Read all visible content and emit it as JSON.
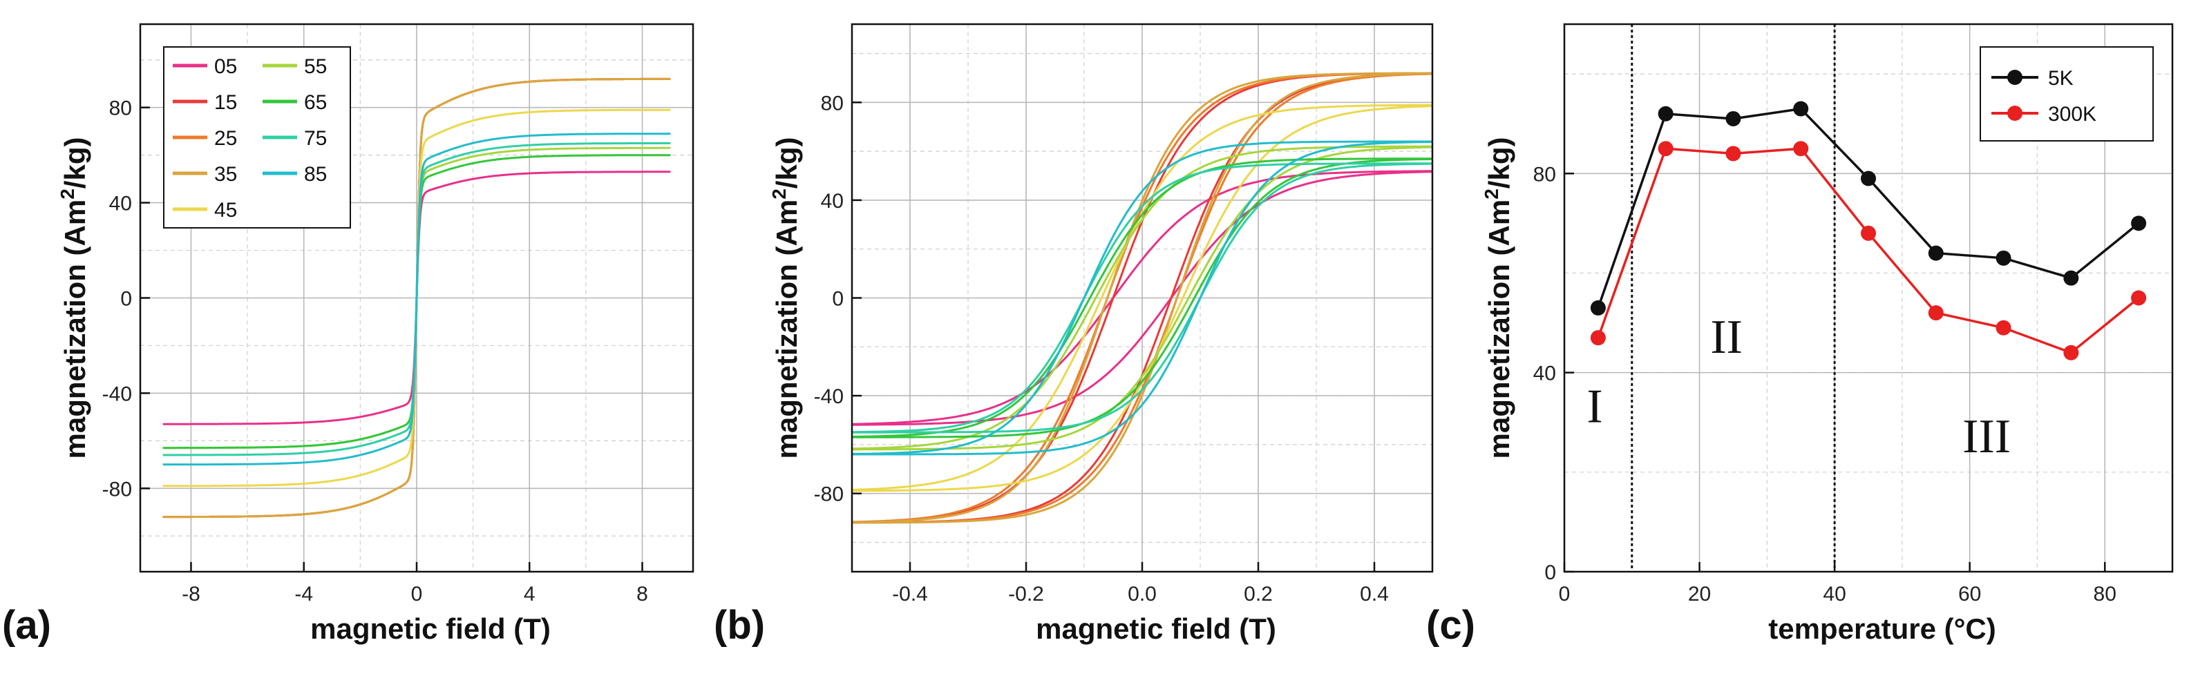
{
  "chart_data": [
    {
      "type": "line",
      "panel_label": "(a)",
      "xlabel": "magnetic field (T)",
      "ylabel_main": "magnetization (Am",
      "ylabel_sup": "2",
      "ylabel_end": "/kg)",
      "xlim": [
        -9.8,
        9.8
      ],
      "ylim": [
        -115,
        115
      ],
      "xticks": [
        -8,
        -4,
        0,
        4,
        8
      ],
      "xtick_labels": [
        "-8",
        "-4",
        "0",
        "4",
        "8"
      ],
      "yticks": [
        -80,
        -40,
        0,
        40,
        80
      ],
      "ytick_labels": [
        "-80",
        "-40",
        "0",
        "40",
        "80"
      ],
      "grid": true,
      "legend": "top-left",
      "series": [
        {
          "name": "05",
          "color": "#e8308a",
          "ms": 53,
          "ms_neg": -53
        },
        {
          "name": "15",
          "color": "#e83a3a",
          "ms": 92,
          "ms_neg": -92
        },
        {
          "name": "25",
          "color": "#ef7a2a",
          "ms": 92,
          "ms_neg": -92
        },
        {
          "name": "35",
          "color": "#d9a53e",
          "ms": 92,
          "ms_neg": -92
        },
        {
          "name": "45",
          "color": "#ecd84c",
          "ms": 79,
          "ms_neg": -79
        },
        {
          "name": "55",
          "color": "#a6d63c",
          "ms": 63,
          "ms_neg": -63
        },
        {
          "name": "65",
          "color": "#34c63c",
          "ms": 60,
          "ms_neg": -63
        },
        {
          "name": "75",
          "color": "#2fcfa5",
          "ms": 65,
          "ms_neg": -66
        },
        {
          "name": "85",
          "color": "#22bccc",
          "ms": 69,
          "ms_neg": -70
        }
      ]
    },
    {
      "type": "line",
      "panel_label": "(b)",
      "xlabel": "magnetic field (T)",
      "ylabel_main": "magnetization (Am",
      "ylabel_sup": "2",
      "ylabel_end": "/kg)",
      "xlim": [
        -0.5,
        0.5
      ],
      "ylim": [
        -112,
        112
      ],
      "xticks": [
        -0.4,
        -0.2,
        0.0,
        0.2,
        0.4
      ],
      "xtick_labels": [
        "-0.4",
        "-0.2",
        "0.0",
        "0.2",
        "0.4"
      ],
      "yticks": [
        -80,
        -40,
        0,
        40,
        80
      ],
      "ytick_labels": [
        "-80",
        "-40",
        "0",
        "40",
        "80"
      ],
      "grid": true,
      "series": [
        {
          "name": "05",
          "color": "#e8308a",
          "ms": 52,
          "hc": 0.05,
          "w": 0.16
        },
        {
          "name": "15",
          "color": "#e83a3a",
          "ms": 92,
          "hc": 0.05,
          "w": 0.14
        },
        {
          "name": "25",
          "color": "#ef7a2a",
          "ms": 92,
          "hc": 0.06,
          "w": 0.14
        },
        {
          "name": "35",
          "color": "#d9a53e",
          "ms": 92,
          "hc": 0.06,
          "w": 0.13
        },
        {
          "name": "45",
          "color": "#ecd84c",
          "ms": 79,
          "hc": 0.07,
          "w": 0.15
        },
        {
          "name": "55",
          "color": "#a6d63c",
          "ms": 62,
          "hc": 0.08,
          "w": 0.14
        },
        {
          "name": "65",
          "color": "#34c63c",
          "ms": 57,
          "hc": 0.09,
          "w": 0.13
        },
        {
          "name": "75",
          "color": "#2fcfa5",
          "ms": 55,
          "hc": 0.1,
          "w": 0.12
        },
        {
          "name": "85",
          "color": "#22bccc",
          "ms": 64,
          "hc": 0.1,
          "w": 0.12
        }
      ]
    },
    {
      "type": "line",
      "panel_label": "(c)",
      "xlabel": "temperature (°C)",
      "ylabel_main": "magnetization (Am",
      "ylabel_sup": "2",
      "ylabel_end": "/kg)",
      "xlim": [
        0,
        90
      ],
      "ylim": [
        0,
        110
      ],
      "xticks": [
        0,
        20,
        40,
        60,
        80
      ],
      "xtick_labels": [
        "0",
        "20",
        "40",
        "60",
        "80"
      ],
      "yticks": [
        0,
        40,
        80
      ],
      "ytick_labels": [
        "0",
        "40",
        "80"
      ],
      "grid": true,
      "legend": "top-right",
      "x": [
        5,
        15,
        25,
        35,
        45,
        55,
        65,
        75,
        85
      ],
      "series": [
        {
          "name": "5K",
          "color": "#111111",
          "values": [
            53,
            92,
            91,
            93,
            79,
            64,
            63,
            59,
            70
          ]
        },
        {
          "name": "300K",
          "color": "#e82020",
          "values": [
            47,
            85,
            84,
            85,
            68,
            52,
            49,
            44,
            55
          ]
        }
      ],
      "vlines": [
        10,
        40
      ],
      "regions": [
        {
          "label": "I",
          "x": 4.5,
          "y": 30
        },
        {
          "label": "II",
          "x": 24,
          "y": 44
        },
        {
          "label": "III",
          "x": 62.5,
          "y": 24
        }
      ]
    }
  ]
}
